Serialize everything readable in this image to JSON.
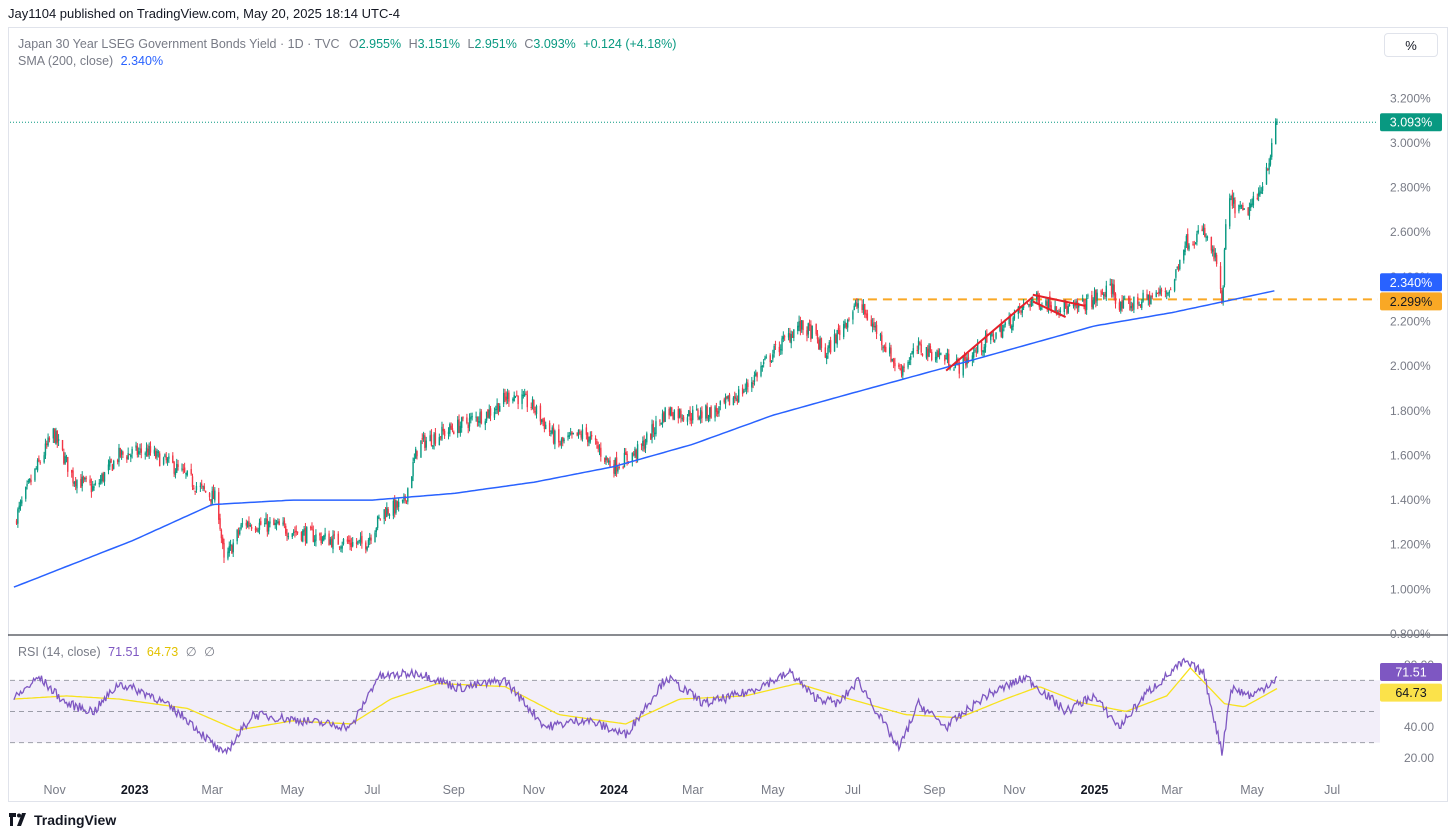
{
  "attribution": "Jay1104 published on TradingView.com, May 20, 2025 18:14 UTC-4",
  "legend": {
    "symbol": "Japan 30 Year LSEG Government Bonds Yield · 1D · TVC",
    "o_label": "O",
    "o_val": "2.955%",
    "h_label": "H",
    "h_val": "3.151%",
    "l_label": "L",
    "l_val": "2.951%",
    "c_label": "C",
    "c_val": "3.093%",
    "change": "+0.124 (+4.18%)",
    "sma_label": "SMA (200, close)",
    "sma_val": "2.340%"
  },
  "scale_button": "%",
  "rsi_legend": {
    "label": "RSI (14, close)",
    "rsi_val": "71.51",
    "ma_val": "64.73",
    "sym1": "∅",
    "sym2": "∅"
  },
  "brand": "TradingView",
  "colors": {
    "up": "#089981",
    "down": "#f23645",
    "sma": "#2962ff",
    "rsi": "#7e57c2",
    "rsi_ma": "#f7e21c",
    "hline": "#f9a825",
    "pattern": "#e5202a"
  },
  "chart_data": [
    {
      "type": "candlestick",
      "title": "Japan 30 Year LSEG Government Bonds Yield",
      "y_unit": "%",
      "ylim": [
        0.8,
        3.3
      ],
      "y_ticks": [
        "3.200%",
        "3.000%",
        "2.800%",
        "2.600%",
        "2.400%",
        "2.200%",
        "2.000%",
        "1.800%",
        "1.600%",
        "1.400%",
        "1.200%",
        "1.000%",
        "0.800%"
      ],
      "x_ticks": [
        "Nov",
        "2023",
        "Mar",
        "May",
        "Jul",
        "Sep",
        "Nov",
        "2024",
        "Mar",
        "May",
        "Jul",
        "Sep",
        "Nov",
        "2025",
        "Mar",
        "May",
        "Jul"
      ],
      "price_anchors": [
        [
          "2022-10-01",
          1.3
        ],
        [
          "2022-10-15",
          1.5
        ],
        [
          "2022-10-31",
          1.7
        ],
        [
          "2022-11-15",
          1.5
        ],
        [
          "2022-12-01",
          1.45
        ],
        [
          "2022-12-20",
          1.6
        ],
        [
          "2023-01-10",
          1.62
        ],
        [
          "2023-01-31",
          1.55
        ],
        [
          "2023-02-20",
          1.45
        ],
        [
          "2023-03-05",
          1.4
        ],
        [
          "2023-03-10",
          1.12
        ],
        [
          "2023-03-25",
          1.3
        ],
        [
          "2023-04-20",
          1.28
        ],
        [
          "2023-05-10",
          1.25
        ],
        [
          "2023-05-31",
          1.22
        ],
        [
          "2023-06-25",
          1.2
        ],
        [
          "2023-07-10",
          1.35
        ],
        [
          "2023-07-25",
          1.38
        ],
        [
          "2023-08-05",
          1.65
        ],
        [
          "2023-08-31",
          1.72
        ],
        [
          "2023-09-30",
          1.8
        ],
        [
          "2023-10-15",
          1.88
        ],
        [
          "2023-10-31",
          1.82
        ],
        [
          "2023-11-20",
          1.65
        ],
        [
          "2023-12-10",
          1.7
        ],
        [
          "2023-12-31",
          1.55
        ],
        [
          "2024-01-20",
          1.62
        ],
        [
          "2024-02-10",
          1.8
        ],
        [
          "2024-02-29",
          1.78
        ],
        [
          "2024-03-20",
          1.8
        ],
        [
          "2024-04-10",
          1.9
        ],
        [
          "2024-04-30",
          2.05
        ],
        [
          "2024-05-20",
          2.18
        ],
        [
          "2024-05-31",
          2.15
        ],
        [
          "2024-06-10",
          2.05
        ],
        [
          "2024-06-25",
          2.2
        ],
        [
          "2024-07-05",
          2.28
        ],
        [
          "2024-07-20",
          2.15
        ],
        [
          "2024-08-05",
          1.98
        ],
        [
          "2024-08-20",
          2.08
        ],
        [
          "2024-09-05",
          2.05
        ],
        [
          "2024-09-20",
          2.0
        ],
        [
          "2024-10-05",
          2.08
        ],
        [
          "2024-10-25",
          2.18
        ],
        [
          "2024-11-15",
          2.3
        ],
        [
          "2024-11-30",
          2.28
        ],
        [
          "2024-12-15",
          2.25
        ],
        [
          "2024-12-31",
          2.3
        ],
        [
          "2025-01-15",
          2.35
        ],
        [
          "2025-01-20",
          2.26
        ],
        [
          "2025-02-10",
          2.3
        ],
        [
          "2025-03-01",
          2.35
        ],
        [
          "2025-03-10",
          2.55
        ],
        [
          "2025-03-25",
          2.6
        ],
        [
          "2025-04-05",
          2.45
        ],
        [
          "2025-04-08",
          2.25
        ],
        [
          "2025-04-12",
          2.75
        ],
        [
          "2025-04-25",
          2.68
        ],
        [
          "2025-05-05",
          2.75
        ],
        [
          "2025-05-15",
          2.95
        ],
        [
          "2025-05-20",
          3.093
        ]
      ],
      "sma_200_anchors": [
        [
          "2022-10-01",
          1.01
        ],
        [
          "2022-12-31",
          1.22
        ],
        [
          "2023-03-01",
          1.38
        ],
        [
          "2023-05-01",
          1.4
        ],
        [
          "2023-07-01",
          1.4
        ],
        [
          "2023-09-01",
          1.43
        ],
        [
          "2023-11-01",
          1.48
        ],
        [
          "2024-01-01",
          1.55
        ],
        [
          "2024-03-01",
          1.65
        ],
        [
          "2024-05-01",
          1.78
        ],
        [
          "2024-07-01",
          1.88
        ],
        [
          "2024-09-01",
          1.98
        ],
        [
          "2024-11-01",
          2.08
        ],
        [
          "2025-01-01",
          2.18
        ],
        [
          "2025-03-01",
          2.24
        ],
        [
          "2025-05-20",
          2.34
        ]
      ],
      "horizontal_line": {
        "value": 2.299,
        "label": "2.299%"
      },
      "last_price_label": "3.093%",
      "sma_label": "2.340%",
      "pattern_lines": [
        [
          [
            "2024-09-10",
            1.98
          ],
          [
            "2024-11-15",
            2.31
          ]
        ],
        [
          [
            "2024-11-15",
            2.32
          ],
          [
            "2024-12-25",
            2.27
          ]
        ],
        [
          [
            "2024-11-15",
            2.29
          ],
          [
            "2024-12-10",
            2.22
          ]
        ]
      ]
    },
    {
      "type": "line",
      "title": "RSI (14, close)",
      "ylim": [
        15,
        85
      ],
      "y_ticks": [
        "80.00",
        "40.00",
        "20.00"
      ],
      "levels": [
        70,
        50,
        30
      ],
      "rsi_label": "71.51",
      "ma_label": "64.73",
      "rsi_anchors": [
        [
          "2022-10-01",
          58
        ],
        [
          "2022-10-20",
          72
        ],
        [
          "2022-11-10",
          55
        ],
        [
          "2022-12-01",
          50
        ],
        [
          "2022-12-20",
          68
        ],
        [
          "2023-01-15",
          60
        ],
        [
          "2023-02-10",
          45
        ],
        [
          "2023-03-10",
          22
        ],
        [
          "2023-04-01",
          48
        ],
        [
          "2023-05-01",
          45
        ],
        [
          "2023-06-15",
          40
        ],
        [
          "2023-07-05",
          72
        ],
        [
          "2023-08-05",
          75
        ],
        [
          "2023-09-05",
          65
        ],
        [
          "2023-10-10",
          70
        ],
        [
          "2023-11-10",
          40
        ],
        [
          "2023-12-10",
          45
        ],
        [
          "2024-01-10",
          35
        ],
        [
          "2024-02-10",
          72
        ],
        [
          "2024-03-10",
          55
        ],
        [
          "2024-04-10",
          62
        ],
        [
          "2024-05-15",
          75
        ],
        [
          "2024-05-31",
          60
        ],
        [
          "2024-06-20",
          55
        ],
        [
          "2024-07-05",
          70
        ],
        [
          "2024-08-05",
          26
        ],
        [
          "2024-08-20",
          55
        ],
        [
          "2024-09-10",
          40
        ],
        [
          "2024-10-10",
          60
        ],
        [
          "2024-11-10",
          72
        ],
        [
          "2024-12-10",
          50
        ],
        [
          "2024-12-31",
          60
        ],
        [
          "2025-01-20",
          40
        ],
        [
          "2025-02-10",
          62
        ],
        [
          "2025-03-10",
          82
        ],
        [
          "2025-03-25",
          75
        ],
        [
          "2025-04-08",
          24
        ],
        [
          "2025-04-15",
          65
        ],
        [
          "2025-05-01",
          60
        ],
        [
          "2025-05-20",
          71.51
        ]
      ],
      "ma_anchors": [
        [
          "2022-10-01",
          58
        ],
        [
          "2022-11-10",
          60
        ],
        [
          "2022-12-20",
          58
        ],
        [
          "2023-02-10",
          52
        ],
        [
          "2023-03-20",
          38
        ],
        [
          "2023-05-01",
          44
        ],
        [
          "2023-06-15",
          42
        ],
        [
          "2023-07-15",
          58
        ],
        [
          "2023-08-20",
          68
        ],
        [
          "2023-10-10",
          66
        ],
        [
          "2023-11-20",
          48
        ],
        [
          "2024-01-10",
          42
        ],
        [
          "2024-02-20",
          58
        ],
        [
          "2024-04-10",
          60
        ],
        [
          "2024-05-20",
          68
        ],
        [
          "2024-06-20",
          60
        ],
        [
          "2024-08-10",
          48
        ],
        [
          "2024-09-20",
          46
        ],
        [
          "2024-10-25",
          58
        ],
        [
          "2024-11-20",
          66
        ],
        [
          "2024-12-20",
          56
        ],
        [
          "2025-01-25",
          50
        ],
        [
          "2025-02-25",
          60
        ],
        [
          "2025-03-15",
          78
        ],
        [
          "2025-04-10",
          55
        ],
        [
          "2025-04-25",
          53
        ],
        [
          "2025-05-20",
          64.73
        ]
      ]
    }
  ]
}
